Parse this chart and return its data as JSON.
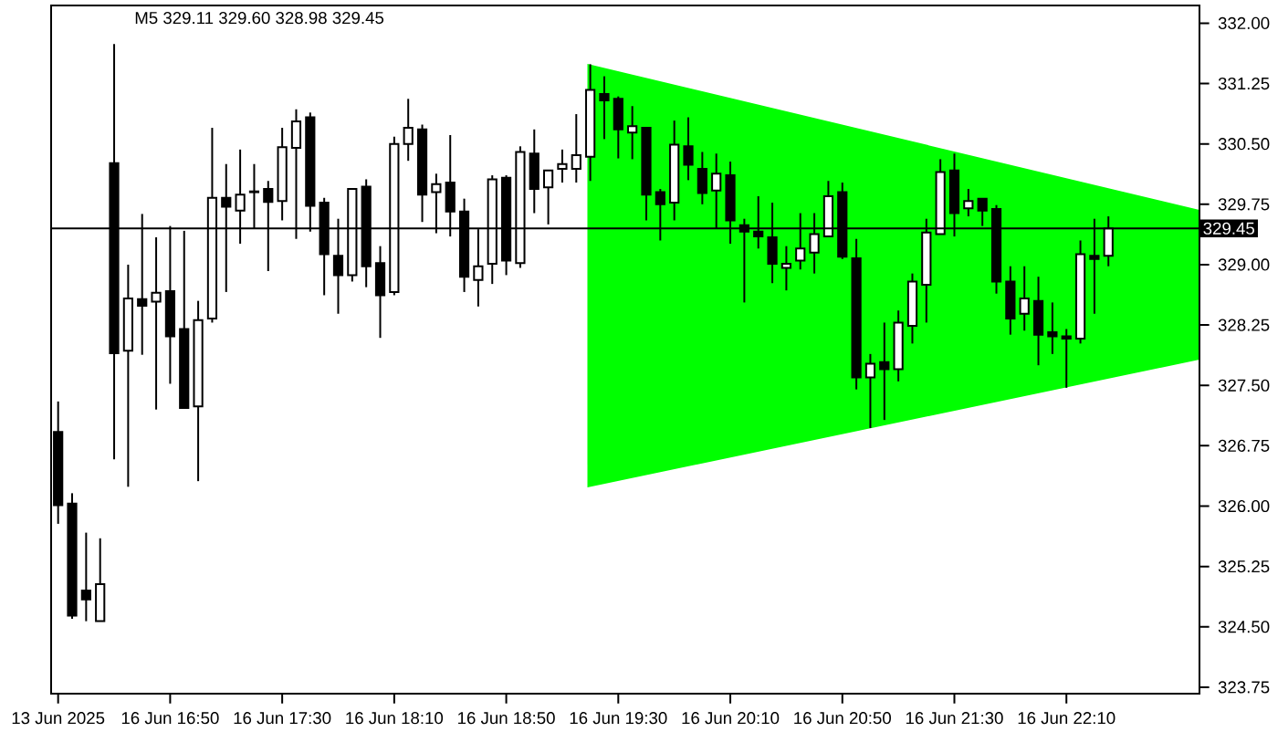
{
  "chart_data": {
    "type": "candlestick",
    "title": "M5  329.11 329.60 328.98 329.45",
    "categories": [
      "13 Jun 2025",
      null,
      null,
      null,
      null,
      null,
      null,
      null,
      "16 Jun 16:50",
      null,
      null,
      null,
      null,
      null,
      null,
      null,
      "16 Jun 17:30",
      null,
      null,
      null,
      null,
      null,
      null,
      null,
      "16 Jun 18:10",
      null,
      null,
      null,
      null,
      null,
      null,
      null,
      "16 Jun 18:50",
      null,
      null,
      null,
      null,
      null,
      null,
      null,
      "16 Jun 19:30",
      null,
      null,
      null,
      null,
      null,
      null,
      null,
      "16 Jun 20:10",
      null,
      null,
      null,
      null,
      null,
      null,
      null,
      "16 Jun 20:50",
      null,
      null,
      null,
      null,
      null,
      null,
      null,
      "16 Jun 21:30",
      null,
      null,
      null,
      null,
      null,
      null,
      null,
      "16 Jun 22:10",
      null,
      null,
      null,
      null,
      null,
      null,
      null,
      null,
      null
    ],
    "ohlc": [
      [
        326.92,
        327.3,
        325.78,
        326.01
      ],
      [
        326.03,
        326.16,
        324.6,
        324.64
      ],
      [
        324.95,
        325.67,
        324.57,
        324.84
      ],
      [
        324.57,
        325.6,
        324.57,
        325.03
      ],
      [
        330.26,
        331.74,
        326.58,
        327.9
      ],
      [
        327.93,
        329.0,
        326.24,
        328.58
      ],
      [
        328.57,
        329.63,
        327.88,
        328.49
      ],
      [
        328.54,
        329.34,
        327.2,
        328.65
      ],
      [
        328.67,
        329.48,
        327.52,
        328.11
      ],
      [
        328.2,
        329.42,
        327.22,
        327.22
      ],
      [
        327.24,
        328.55,
        326.31,
        328.31
      ],
      [
        328.33,
        330.7,
        328.28,
        329.83
      ],
      [
        329.83,
        330.25,
        328.66,
        329.72
      ],
      [
        329.67,
        330.43,
        329.26,
        329.87
      ],
      [
        329.91,
        330.25,
        329.45,
        329.9
      ],
      [
        329.94,
        330.04,
        328.92,
        329.78
      ],
      [
        329.79,
        330.7,
        329.55,
        330.46
      ],
      [
        330.45,
        330.93,
        329.32,
        330.78
      ],
      [
        330.83,
        330.89,
        329.41,
        329.73
      ],
      [
        329.77,
        329.83,
        328.62,
        329.13
      ],
      [
        329.11,
        329.57,
        328.39,
        328.87
      ],
      [
        328.87,
        329.94,
        328.79,
        329.94
      ],
      [
        329.97,
        330.06,
        328.72,
        328.98
      ],
      [
        329.02,
        329.23,
        328.09,
        328.62
      ],
      [
        328.66,
        330.59,
        328.62,
        330.5
      ],
      [
        330.5,
        331.06,
        330.29,
        330.7
      ],
      [
        330.68,
        330.74,
        329.53,
        329.87
      ],
      [
        329.9,
        330.13,
        329.39,
        330.0
      ],
      [
        330.02,
        330.61,
        329.35,
        329.66
      ],
      [
        329.66,
        329.82,
        328.66,
        328.85
      ],
      [
        328.81,
        329.44,
        328.48,
        328.98
      ],
      [
        329.01,
        330.11,
        328.76,
        330.06
      ],
      [
        330.08,
        330.11,
        328.87,
        329.05
      ],
      [
        329.02,
        330.47,
        328.96,
        330.4
      ],
      [
        330.38,
        330.68,
        329.64,
        329.94
      ],
      [
        329.96,
        330.17,
        329.5,
        330.17
      ],
      [
        330.19,
        330.43,
        330.02,
        330.25
      ],
      [
        330.19,
        330.87,
        330.02,
        330.36
      ],
      [
        330.34,
        331.49,
        330.04,
        331.17
      ],
      [
        331.12,
        331.34,
        330.56,
        331.04
      ],
      [
        331.06,
        331.09,
        330.32,
        330.68
      ],
      [
        330.64,
        330.97,
        330.31,
        330.72
      ],
      [
        330.7,
        330.7,
        329.55,
        329.87
      ],
      [
        329.9,
        329.94,
        329.3,
        329.75
      ],
      [
        329.77,
        330.79,
        329.55,
        330.49
      ],
      [
        330.47,
        330.83,
        330.05,
        330.24
      ],
      [
        330.19,
        330.4,
        329.75,
        329.89
      ],
      [
        329.92,
        330.38,
        329.45,
        330.13
      ],
      [
        330.11,
        330.28,
        329.26,
        329.55
      ],
      [
        329.49,
        329.57,
        328.53,
        329.41
      ],
      [
        329.41,
        329.85,
        329.2,
        329.35
      ],
      [
        329.34,
        329.77,
        328.77,
        329.01
      ],
      [
        328.96,
        329.23,
        328.68,
        329.01
      ],
      [
        329.05,
        329.64,
        328.94,
        329.2
      ],
      [
        329.15,
        329.64,
        328.89,
        329.38
      ],
      [
        329.35,
        330.04,
        329.35,
        329.85
      ],
      [
        329.9,
        330.02,
        329.07,
        329.1
      ],
      [
        329.08,
        329.32,
        327.45,
        327.6
      ],
      [
        327.6,
        327.89,
        326.97,
        327.77
      ],
      [
        327.79,
        328.28,
        327.07,
        327.7
      ],
      [
        327.7,
        328.43,
        327.55,
        328.28
      ],
      [
        328.24,
        328.89,
        328.02,
        328.79
      ],
      [
        328.75,
        329.57,
        328.28,
        329.4
      ],
      [
        329.38,
        330.31,
        329.38,
        330.15
      ],
      [
        330.17,
        330.38,
        329.35,
        329.64
      ],
      [
        329.7,
        329.94,
        329.6,
        329.79
      ],
      [
        329.82,
        329.82,
        329.48,
        329.67
      ],
      [
        329.69,
        329.74,
        328.64,
        328.79
      ],
      [
        328.79,
        328.98,
        328.13,
        328.33
      ],
      [
        328.39,
        328.98,
        328.18,
        328.58
      ],
      [
        328.55,
        328.85,
        327.75,
        328.13
      ],
      [
        328.16,
        328.53,
        327.89,
        328.11
      ],
      [
        328.11,
        328.2,
        327.47,
        328.08
      ],
      [
        328.08,
        329.3,
        328.02,
        329.13
      ],
      [
        329.11,
        329.57,
        328.39,
        329.07
      ],
      [
        329.11,
        329.6,
        328.98,
        329.45
      ],
      null,
      null,
      null,
      null,
      null,
      null
    ],
    "ylim": [
      323.67,
      332.22
    ],
    "yticks": [
      {
        "value": 323.75,
        "label": "323.75"
      },
      {
        "value": 324.5,
        "label": "324.50"
      },
      {
        "value": 325.25,
        "label": "325.25"
      },
      {
        "value": 326,
        "label": "326.00"
      },
      {
        "value": 326.75,
        "label": "326.75"
      },
      {
        "value": 327.5,
        "label": "327.50"
      },
      {
        "value": 328.25,
        "label": "328.25"
      },
      {
        "value": 329,
        "label": "329.00"
      },
      {
        "value": 329.75,
        "label": "329.75"
      },
      {
        "value": 330.5,
        "label": "330.50"
      },
      {
        "value": 331.25,
        "label": "331.25"
      },
      {
        "value": 332,
        "label": "332.00"
      }
    ],
    "ref_lines": [
      {
        "axis": "y",
        "value": 329.45,
        "label": "329.45"
      }
    ]
  }
}
